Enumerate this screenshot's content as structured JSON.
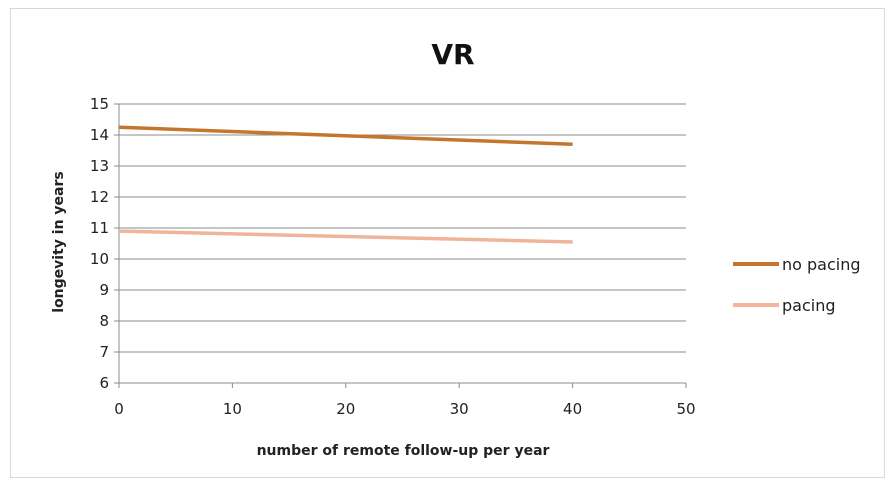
{
  "chart_data": {
    "type": "line",
    "title": "VR",
    "xlabel": "number of remote follow-up per year",
    "ylabel": "longevity in years",
    "xlim": [
      0,
      50
    ],
    "ylim": [
      6,
      15
    ],
    "xticks": [
      0,
      10,
      20,
      30,
      40,
      50
    ],
    "yticks": [
      6,
      7,
      8,
      9,
      10,
      11,
      12,
      13,
      14,
      15
    ],
    "grid": "horizontal",
    "legend": "right",
    "series": [
      {
        "name": "no pacing",
        "color": "#c5762e",
        "x": [
          0,
          40
        ],
        "y": [
          14.25,
          13.7
        ]
      },
      {
        "name": "pacing",
        "color": "#f0b49a",
        "x": [
          0,
          40
        ],
        "y": [
          10.9,
          10.55
        ]
      }
    ]
  }
}
